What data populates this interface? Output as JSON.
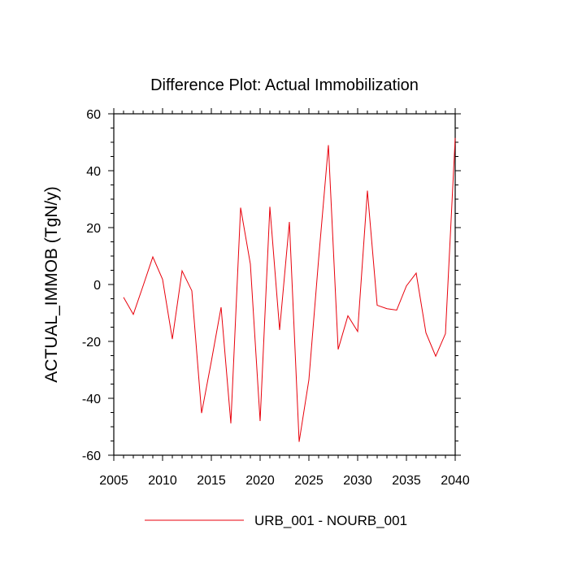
{
  "chart_data": {
    "type": "line",
    "title": "Difference Plot: Actual Immobilization",
    "ylabel": "ACTUAL_IMMOB  (TgN/y)",
    "xlabel": "",
    "xlim": [
      2005,
      2040
    ],
    "ylim": [
      -60,
      60
    ],
    "x_ticks": [
      2005,
      2010,
      2015,
      2020,
      2025,
      2030,
      2035,
      2040
    ],
    "y_ticks": [
      -60,
      -40,
      -20,
      0,
      20,
      40,
      60
    ],
    "grid": false,
    "legend_position": "bottom",
    "series": [
      {
        "name": "URB_001 - NOURB_001",
        "color": "#e8000b",
        "x": [
          2006,
          2007,
          2008,
          2009,
          2010,
          2011,
          2012,
          2013,
          2014,
          2015,
          2016,
          2017,
          2018,
          2019,
          2020,
          2021,
          2022,
          2023,
          2024,
          2025,
          2026,
          2027,
          2028,
          2029,
          2030,
          2031,
          2032,
          2033,
          2034,
          2035,
          2036,
          2037,
          2038,
          2039,
          2040
        ],
        "values": [
          -4.5,
          -10.5,
          -0.5,
          9.7,
          1.8,
          -19.2,
          4.8,
          -2.2,
          -45.2,
          -27.0,
          -8.0,
          -48.8,
          27.0,
          7.2,
          -48.0,
          27.3,
          -16.0,
          22.0,
          -55.3,
          -33.5,
          9.0,
          49.0,
          -22.8,
          -11.0,
          -16.5,
          33.0,
          -7.3,
          -8.5,
          -9.0,
          -0.5,
          4.0,
          -17.0,
          -25.2,
          -17.3,
          51.5
        ]
      }
    ]
  }
}
